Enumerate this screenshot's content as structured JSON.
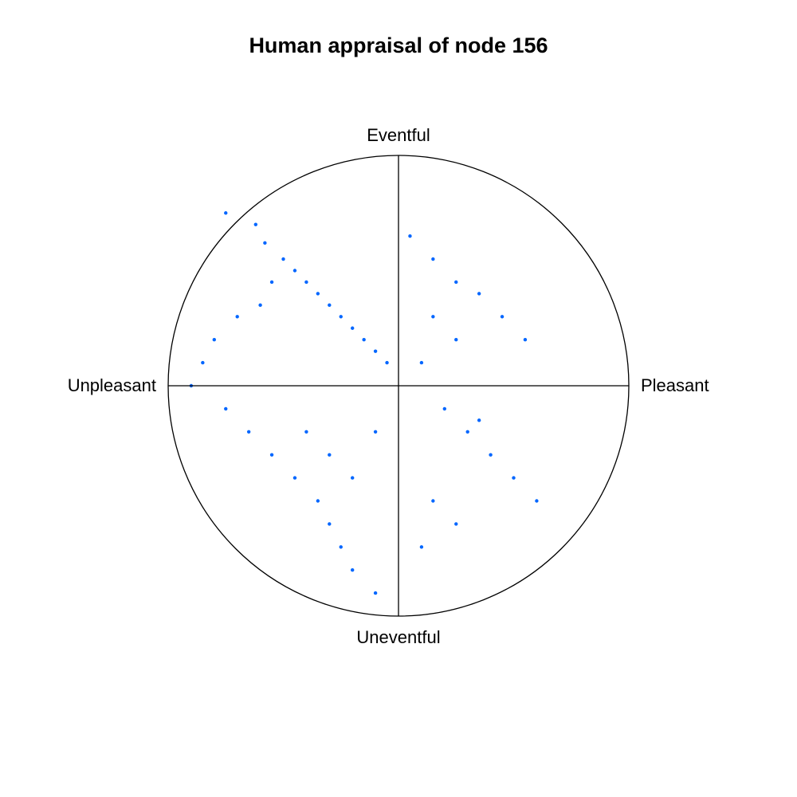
{
  "chart_data": {
    "type": "scatter",
    "title": "Human appraisal of node 156",
    "subtype": "circular circumplex scatter",
    "axes": {
      "top": "Eventful",
      "bottom": "Uneventful",
      "left": "Unpleasant",
      "right": "Pleasant"
    },
    "xlim": [
      -1,
      1
    ],
    "ylim": [
      -1,
      1
    ],
    "grid": false,
    "legend": "none",
    "point_color": "#0066ff",
    "outline_color": "#000000",
    "series": [
      {
        "values": [
          [
            -0.75,
            0.75
          ],
          [
            -0.62,
            0.7
          ],
          [
            -0.58,
            0.62
          ],
          [
            -0.5,
            0.55
          ],
          [
            -0.45,
            0.5
          ],
          [
            -0.4,
            0.45
          ],
          [
            -0.35,
            0.4
          ],
          [
            -0.3,
            0.35
          ],
          [
            -0.25,
            0.3
          ],
          [
            -0.2,
            0.25
          ],
          [
            -0.15,
            0.2
          ],
          [
            -0.1,
            0.15
          ],
          [
            -0.05,
            0.1
          ],
          [
            -0.55,
            0.45
          ],
          [
            -0.6,
            0.35
          ],
          [
            -0.7,
            0.3
          ],
          [
            -0.8,
            0.2
          ],
          [
            -0.85,
            0.1
          ],
          [
            -0.9,
            0.0
          ],
          [
            -0.75,
            -0.1
          ],
          [
            -0.65,
            -0.2
          ],
          [
            -0.55,
            -0.3
          ],
          [
            -0.45,
            -0.4
          ],
          [
            -0.35,
            -0.5
          ],
          [
            -0.3,
            -0.6
          ],
          [
            -0.25,
            -0.7
          ],
          [
            -0.2,
            -0.8
          ],
          [
            -0.1,
            -0.9
          ],
          [
            -0.4,
            -0.2
          ],
          [
            -0.3,
            -0.3
          ],
          [
            -0.2,
            -0.4
          ],
          [
            -0.1,
            -0.2
          ],
          [
            0.05,
            0.65
          ],
          [
            0.15,
            0.55
          ],
          [
            0.25,
            0.45
          ],
          [
            0.35,
            0.4
          ],
          [
            0.45,
            0.3
          ],
          [
            0.55,
            0.2
          ],
          [
            0.15,
            0.3
          ],
          [
            0.25,
            0.2
          ],
          [
            0.1,
            0.1
          ],
          [
            0.2,
            -0.1
          ],
          [
            0.3,
            -0.2
          ],
          [
            0.4,
            -0.3
          ],
          [
            0.5,
            -0.4
          ],
          [
            0.6,
            -0.5
          ],
          [
            0.15,
            -0.5
          ],
          [
            0.25,
            -0.6
          ],
          [
            0.1,
            -0.7
          ],
          [
            0.35,
            -0.15
          ]
        ]
      }
    ]
  }
}
